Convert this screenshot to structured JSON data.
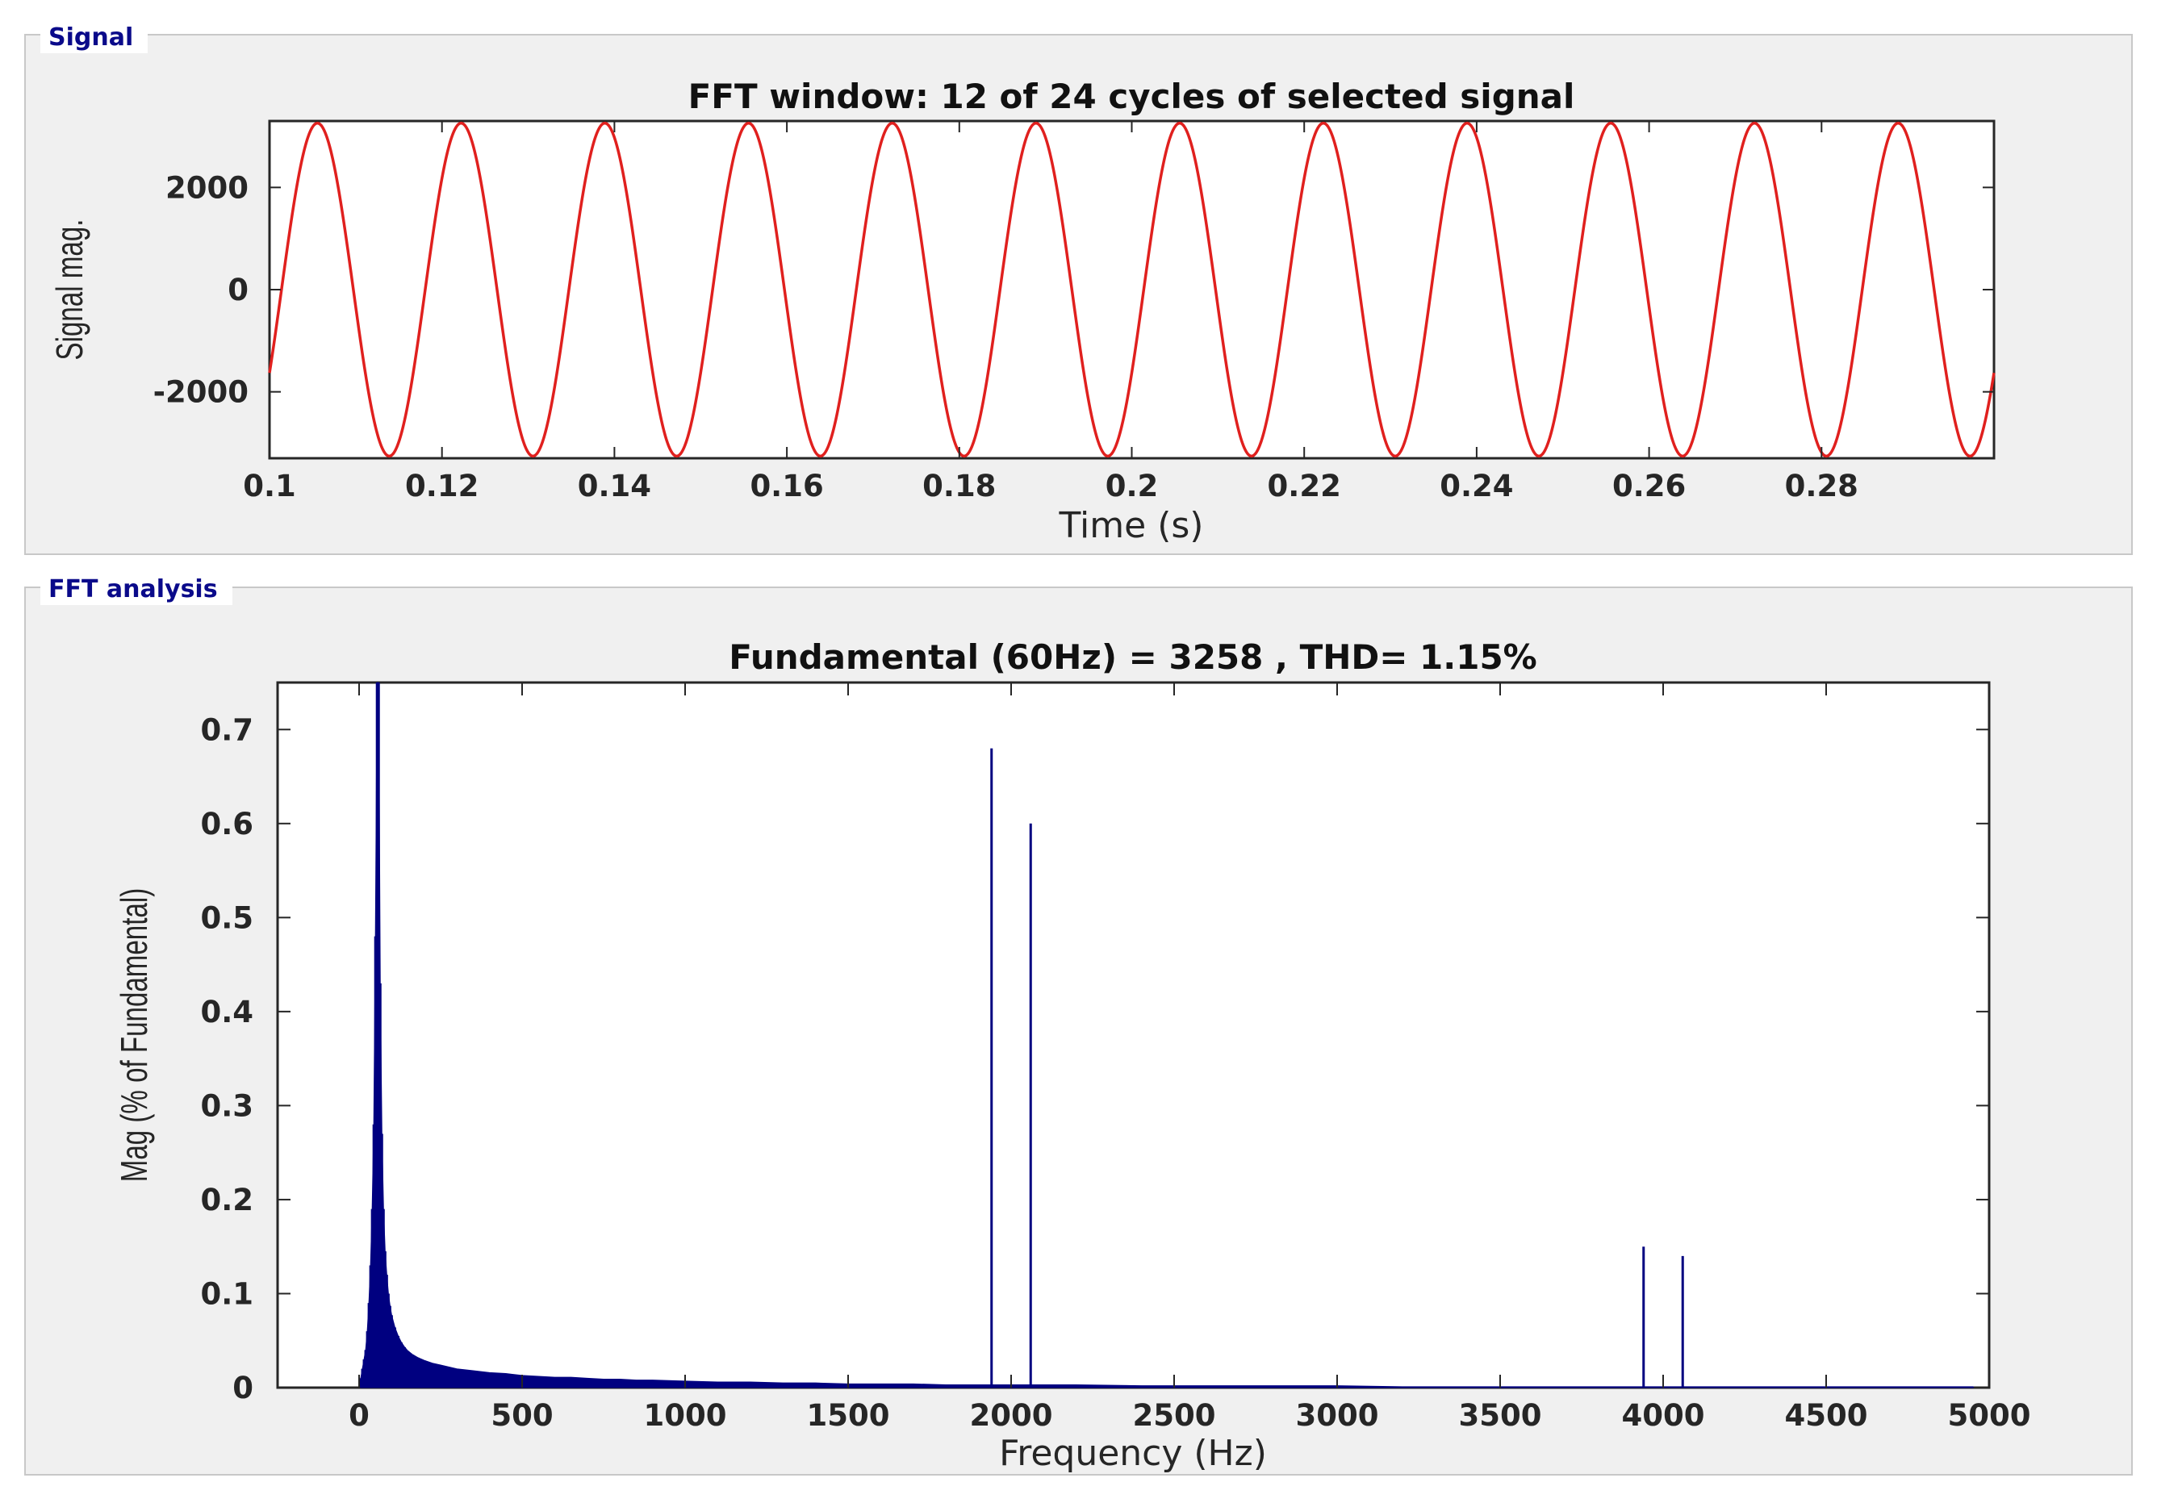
{
  "panels": {
    "signal_label": "Signal",
    "fft_label": "FFT analysis"
  },
  "colors": {
    "signal_line": "#e0201e",
    "fft_bars": "#000080",
    "panel_bg": "#f0f0f0",
    "legend_text": "#0a0a8a"
  },
  "chart_data": [
    {
      "type": "line",
      "title": "FFT window: 12 of 24 cycles of selected signal",
      "xlabel": "Time (s)",
      "ylabel": "Signal mag.",
      "xlim": [
        0.1,
        0.3
      ],
      "ylim": [
        -3300,
        3300
      ],
      "xticks": [
        0.1,
        0.12,
        0.14,
        0.16,
        0.18,
        0.2,
        0.22,
        0.24,
        0.26,
        0.28
      ],
      "xtick_labels": [
        "0.1",
        "0.12",
        "0.14",
        "0.16",
        "0.18",
        "0.2",
        "0.22",
        "0.24",
        "0.26",
        "0.28"
      ],
      "yticks": [
        -2000,
        0,
        2000
      ],
      "ytick_labels": [
        "-2000",
        "0",
        "2000"
      ],
      "grid": false,
      "series": [
        {
          "amplitude": 3258,
          "frequency_hz": 60,
          "phase_deg": -30
        }
      ]
    },
    {
      "type": "bar",
      "title": "Fundamental (60Hz) = 3258 , THD= 1.15%",
      "xlabel": "Frequency (Hz)",
      "ylabel": "Mag (% of Fundamental)",
      "xlim": [
        -250,
        5000
      ],
      "ylim": [
        0,
        0.75
      ],
      "xticks": [
        0,
        500,
        1000,
        1500,
        2000,
        2500,
        3000,
        3500,
        4000,
        4500,
        5000
      ],
      "xtick_labels": [
        "0",
        "500",
        "1000",
        "1500",
        "2000",
        "2500",
        "3000",
        "3500",
        "4000",
        "4500",
        "5000"
      ],
      "yticks": [
        0,
        0.1,
        0.2,
        0.3,
        0.4,
        0.5,
        0.6,
        0.7
      ],
      "ytick_labels": [
        "0",
        "0.1",
        "0.2",
        "0.3",
        "0.4",
        "0.5",
        "0.6",
        "0.7"
      ],
      "grid": false,
      "bars": [
        {
          "x": 5,
          "y": 0.01
        },
        {
          "x": 10,
          "y": 0.02
        },
        {
          "x": 15,
          "y": 0.03
        },
        {
          "x": 20,
          "y": 0.04
        },
        {
          "x": 25,
          "y": 0.06
        },
        {
          "x": 30,
          "y": 0.09
        },
        {
          "x": 35,
          "y": 0.13
        },
        {
          "x": 40,
          "y": 0.19
        },
        {
          "x": 45,
          "y": 0.28
        },
        {
          "x": 50,
          "y": 0.48
        },
        {
          "x": 55,
          "y": 0.75
        },
        {
          "x": 60,
          "y": 0.75
        },
        {
          "x": 65,
          "y": 0.43
        },
        {
          "x": 70,
          "y": 0.27
        },
        {
          "x": 75,
          "y": 0.19
        },
        {
          "x": 80,
          "y": 0.145
        },
        {
          "x": 85,
          "y": 0.12
        },
        {
          "x": 90,
          "y": 0.1
        },
        {
          "x": 95,
          "y": 0.087
        },
        {
          "x": 100,
          "y": 0.077
        },
        {
          "x": 110,
          "y": 0.064
        },
        {
          "x": 120,
          "y": 0.055
        },
        {
          "x": 130,
          "y": 0.048
        },
        {
          "x": 140,
          "y": 0.043
        },
        {
          "x": 150,
          "y": 0.039
        },
        {
          "x": 165,
          "y": 0.035
        },
        {
          "x": 180,
          "y": 0.032
        },
        {
          "x": 200,
          "y": 0.029
        },
        {
          "x": 225,
          "y": 0.026
        },
        {
          "x": 250,
          "y": 0.024
        },
        {
          "x": 275,
          "y": 0.022
        },
        {
          "x": 300,
          "y": 0.02
        },
        {
          "x": 350,
          "y": 0.018
        },
        {
          "x": 400,
          "y": 0.016
        },
        {
          "x": 450,
          "y": 0.015
        },
        {
          "x": 500,
          "y": 0.013
        },
        {
          "x": 550,
          "y": 0.012
        },
        {
          "x": 600,
          "y": 0.011
        },
        {
          "x": 650,
          "y": 0.011
        },
        {
          "x": 700,
          "y": 0.01
        },
        {
          "x": 750,
          "y": 0.009
        },
        {
          "x": 800,
          "y": 0.009
        },
        {
          "x": 850,
          "y": 0.008
        },
        {
          "x": 900,
          "y": 0.008
        },
        {
          "x": 1000,
          "y": 0.007
        },
        {
          "x": 1100,
          "y": 0.006
        },
        {
          "x": 1200,
          "y": 0.006
        },
        {
          "x": 1300,
          "y": 0.005
        },
        {
          "x": 1400,
          "y": 0.005
        },
        {
          "x": 1500,
          "y": 0.004
        },
        {
          "x": 1600,
          "y": 0.004
        },
        {
          "x": 1700,
          "y": 0.004
        },
        {
          "x": 1800,
          "y": 0.003
        },
        {
          "x": 1900,
          "y": 0.003
        },
        {
          "x": 1940,
          "y": 0.68
        },
        {
          "x": 2060,
          "y": 0.6
        },
        {
          "x": 2200,
          "y": 0.003
        },
        {
          "x": 2400,
          "y": 0.002
        },
        {
          "x": 2600,
          "y": 0.002
        },
        {
          "x": 2800,
          "y": 0.002
        },
        {
          "x": 3000,
          "y": 0.002
        },
        {
          "x": 3200,
          "y": 0.001
        },
        {
          "x": 3400,
          "y": 0.001
        },
        {
          "x": 3600,
          "y": 0.001
        },
        {
          "x": 3800,
          "y": 0.001
        },
        {
          "x": 3940,
          "y": 0.15
        },
        {
          "x": 4060,
          "y": 0.14
        },
        {
          "x": 4200,
          "y": 0.001
        },
        {
          "x": 4400,
          "y": 0.001
        },
        {
          "x": 4600,
          "y": 0.001
        },
        {
          "x": 4800,
          "y": 0.001
        },
        {
          "x": 4950,
          "y": 0.001
        }
      ]
    }
  ]
}
